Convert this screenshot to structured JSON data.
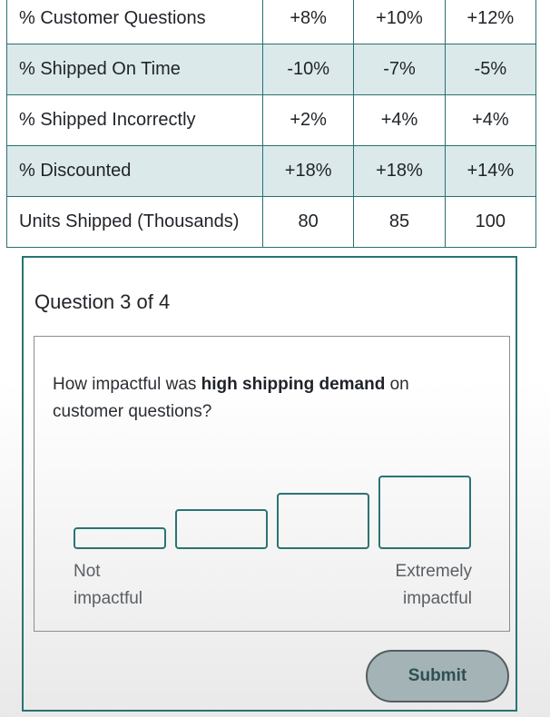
{
  "table": {
    "rows": [
      {
        "label": "% Customer Questions",
        "values": [
          "+8%",
          "+10%",
          "+12%"
        ]
      },
      {
        "label": "% Shipped On Time",
        "values": [
          "-10%",
          "-7%",
          "-5%"
        ]
      },
      {
        "label": "% Shipped Incorrectly",
        "values": [
          "+2%",
          "+4%",
          "+4%"
        ]
      },
      {
        "label": "% Discounted",
        "values": [
          "+18%",
          "+18%",
          "+14%"
        ]
      },
      {
        "label": "Units Shipped (Thousands)",
        "values": [
          "80",
          "85",
          "100"
        ]
      }
    ]
  },
  "question": {
    "counter": "Question 3 of 4",
    "prompt_before": "How impactful was ",
    "prompt_bold": "high shipping demand",
    "prompt_after": " on customer questions?",
    "scale_low_line1": "Not",
    "scale_low_line2": "impactful",
    "scale_high_line1": "Extremely",
    "scale_high_line2": "impactful",
    "submit_label": "Submit"
  },
  "colors": {
    "accent": "#2b7373",
    "row_shade": "#dbe9ea",
    "submit_bg": "#a3b3b6"
  }
}
